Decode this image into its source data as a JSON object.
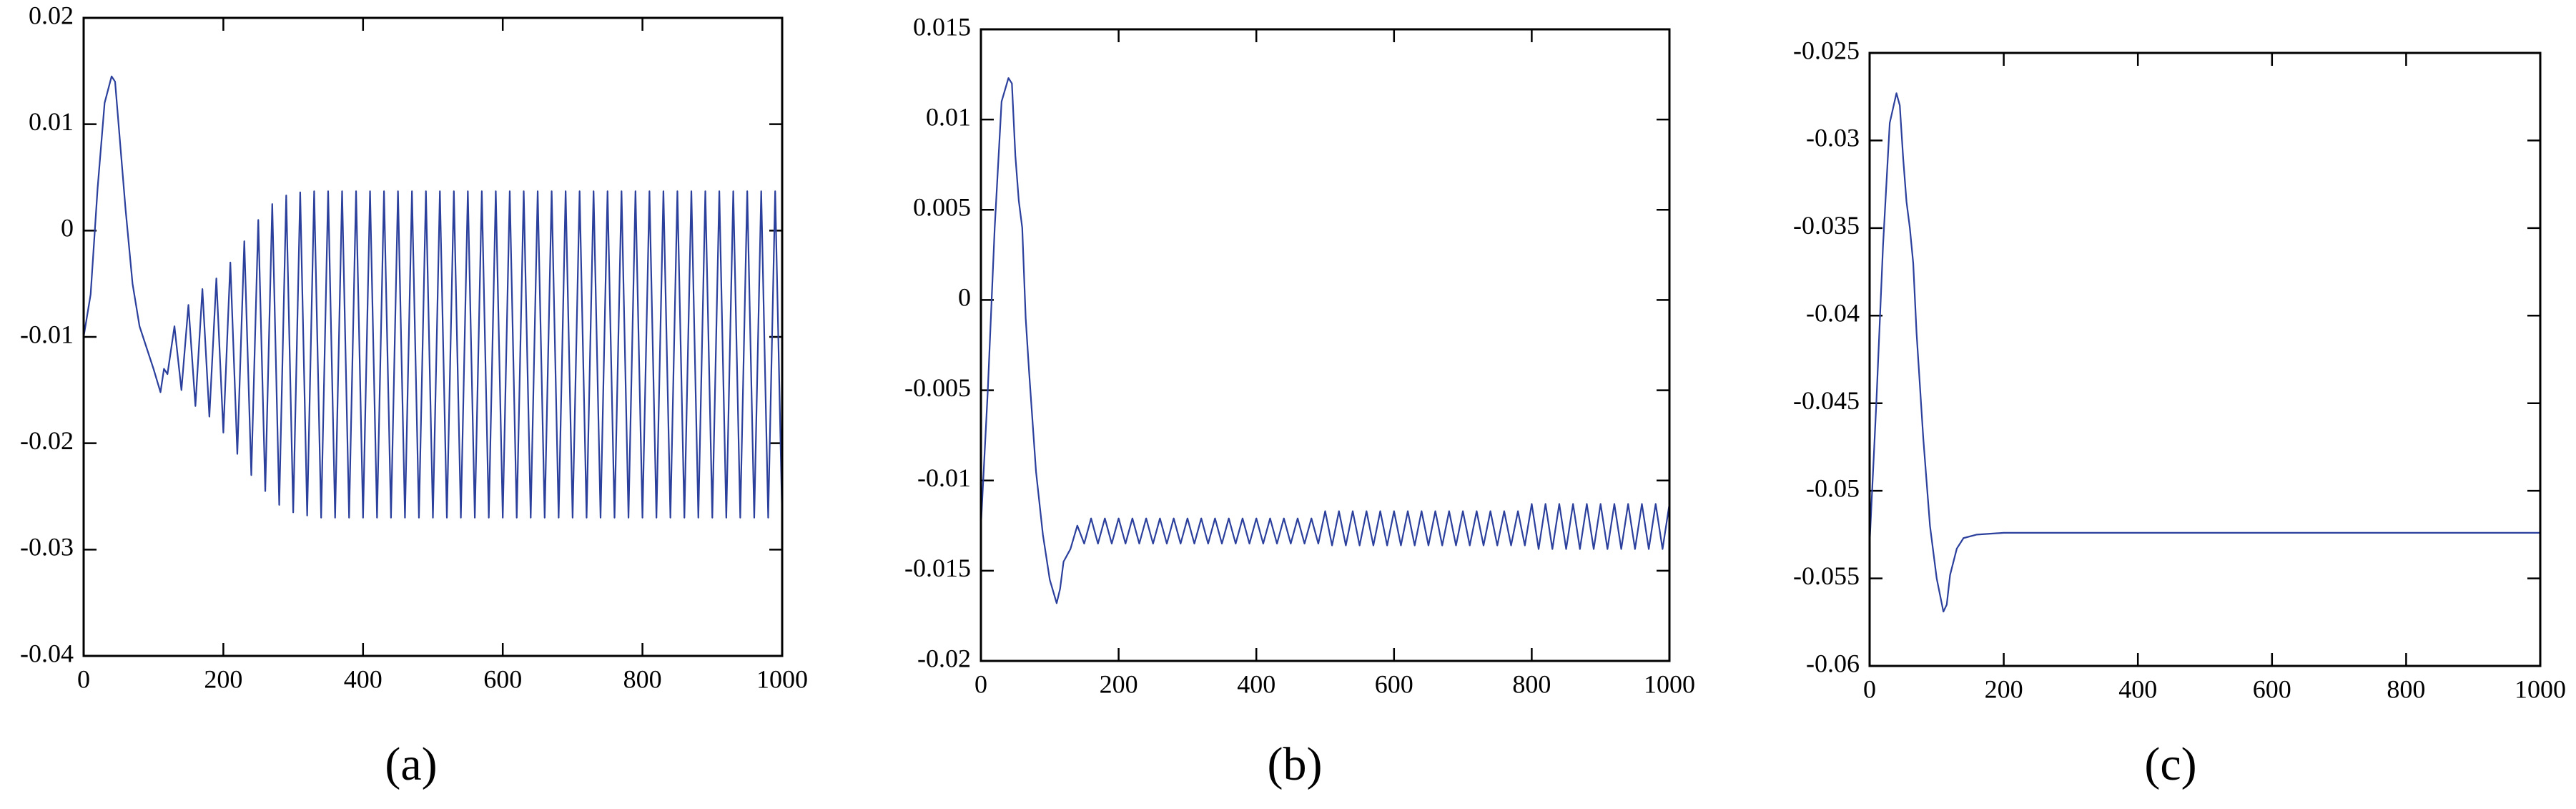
{
  "chart_data": [
    {
      "type": "line",
      "caption": "(a)",
      "color": "#2b3f9c",
      "xlim": [
        0,
        1000
      ],
      "xticks": [
        0,
        200,
        400,
        600,
        800,
        1000
      ],
      "ylim": [
        -0.04,
        0.02
      ],
      "yticks": [
        -0.04,
        -0.03,
        -0.02,
        -0.01,
        0,
        0.01,
        0.02
      ],
      "x": [
        0,
        10,
        20,
        30,
        40,
        45,
        50,
        60,
        70,
        80,
        90,
        100,
        110,
        115,
        120,
        130,
        140,
        150,
        160,
        170,
        180,
        190,
        200,
        210,
        220,
        230,
        240,
        250,
        260,
        270,
        280,
        290,
        300,
        310,
        320,
        330,
        340,
        350,
        360,
        370,
        380,
        390,
        400,
        410,
        420,
        430,
        440,
        450,
        460,
        470,
        480,
        490,
        500,
        510,
        520,
        530,
        540,
        550,
        560,
        570,
        580,
        590,
        600,
        610,
        620,
        630,
        640,
        650,
        660,
        670,
        680,
        690,
        700,
        710,
        720,
        730,
        740,
        750,
        760,
        770,
        780,
        790,
        800,
        810,
        820,
        830,
        840,
        850,
        860,
        870,
        880,
        890,
        900,
        910,
        920,
        930,
        940,
        950,
        960,
        970,
        980,
        990,
        1000
      ],
      "values": [
        -0.01,
        -0.006,
        0.004,
        0.012,
        0.0145,
        0.014,
        0.01,
        0.002,
        -0.005,
        -0.009,
        -0.011,
        -0.013,
        -0.0152,
        -0.013,
        -0.0135,
        -0.009,
        -0.015,
        -0.007,
        -0.0165,
        -0.0055,
        -0.0175,
        -0.0045,
        -0.019,
        -0.003,
        -0.021,
        -0.001,
        -0.023,
        0.001,
        -0.0245,
        0.0025,
        -0.0258,
        0.0033,
        -0.0265,
        0.0036,
        -0.0268,
        0.0037,
        -0.027,
        0.0037,
        -0.027,
        0.0037,
        -0.027,
        0.0037,
        -0.027,
        0.0037,
        -0.027,
        0.0037,
        -0.027,
        0.0037,
        -0.027,
        0.0037,
        -0.027,
        0.0037,
        -0.027,
        0.0037,
        -0.027,
        0.0037,
        -0.027,
        0.0037,
        -0.027,
        0.0037,
        -0.027,
        0.0037,
        -0.027,
        0.0037,
        -0.027,
        0.0037,
        -0.027,
        0.0037,
        -0.027,
        0.0037,
        -0.027,
        0.0037,
        -0.027,
        0.0037,
        -0.027,
        0.0037,
        -0.027,
        0.0037,
        -0.027,
        0.0037,
        -0.027,
        0.0037,
        -0.027,
        0.0037,
        -0.027,
        0.0037,
        -0.027,
        0.0037,
        -0.027,
        0.0037,
        -0.027,
        0.0037,
        -0.027,
        0.0037,
        -0.027,
        0.0037,
        -0.027,
        0.0037,
        -0.027,
        0.0037,
        -0.027,
        0.0037,
        -0.027
      ]
    },
    {
      "type": "line",
      "caption": "(b)",
      "color": "#2b3f9c",
      "xlim": [
        0,
        1000
      ],
      "xticks": [
        0,
        200,
        400,
        600,
        800,
        1000
      ],
      "ylim": [
        -0.02,
        0.015
      ],
      "yticks": [
        -0.02,
        -0.015,
        -0.01,
        -0.005,
        0,
        0.005,
        0.01,
        0.015
      ],
      "x": [
        0,
        10,
        20,
        30,
        40,
        45,
        50,
        55,
        60,
        65,
        70,
        80,
        90,
        100,
        110,
        115,
        120,
        130,
        140,
        150,
        160,
        170,
        180,
        190,
        200,
        210,
        220,
        230,
        240,
        250,
        260,
        270,
        280,
        290,
        300,
        310,
        320,
        330,
        340,
        350,
        360,
        370,
        380,
        390,
        400,
        410,
        420,
        430,
        440,
        450,
        460,
        470,
        480,
        490,
        500,
        510,
        520,
        530,
        540,
        550,
        560,
        570,
        580,
        590,
        600,
        610,
        620,
        630,
        640,
        650,
        660,
        670,
        680,
        690,
        700,
        710,
        720,
        730,
        740,
        750,
        760,
        770,
        780,
        790,
        800,
        810,
        820,
        830,
        840,
        850,
        860,
        870,
        880,
        890,
        900,
        910,
        920,
        930,
        940,
        950,
        960,
        970,
        980,
        990,
        1000
      ],
      "values": [
        -0.0125,
        -0.005,
        0.004,
        0.011,
        0.0123,
        0.012,
        0.008,
        0.0055,
        0.004,
        -0.001,
        -0.004,
        -0.0095,
        -0.013,
        -0.0155,
        -0.0168,
        -0.016,
        -0.0145,
        -0.0138,
        -0.0125,
        -0.0135,
        -0.0121,
        -0.0135,
        -0.0121,
        -0.0135,
        -0.0121,
        -0.0135,
        -0.0121,
        -0.0135,
        -0.0121,
        -0.0135,
        -0.0121,
        -0.0135,
        -0.0121,
        -0.0135,
        -0.0121,
        -0.0135,
        -0.0121,
        -0.0135,
        -0.0121,
        -0.0135,
        -0.0121,
        -0.0135,
        -0.0121,
        -0.0135,
        -0.0121,
        -0.0135,
        -0.0121,
        -0.0135,
        -0.0121,
        -0.0135,
        -0.0121,
        -0.0135,
        -0.0121,
        -0.0135,
        -0.0117,
        -0.0136,
        -0.0117,
        -0.0136,
        -0.0117,
        -0.0136,
        -0.0117,
        -0.0136,
        -0.0117,
        -0.0136,
        -0.0117,
        -0.0136,
        -0.0117,
        -0.0136,
        -0.0117,
        -0.0136,
        -0.0117,
        -0.0136,
        -0.0117,
        -0.0136,
        -0.0117,
        -0.0136,
        -0.0117,
        -0.0136,
        -0.0117,
        -0.0136,
        -0.0117,
        -0.0136,
        -0.0117,
        -0.0136,
        -0.0113,
        -0.0138,
        -0.0113,
        -0.0138,
        -0.0113,
        -0.0138,
        -0.0113,
        -0.0138,
        -0.0113,
        -0.0138,
        -0.0113,
        -0.0138,
        -0.0113,
        -0.0138,
        -0.0113,
        -0.0138,
        -0.0113,
        -0.0138,
        -0.0113,
        -0.0138,
        -0.0113
      ]
    },
    {
      "type": "line",
      "caption": "(c)",
      "color": "#2b3f9c",
      "xlim": [
        0,
        1000
      ],
      "xticks": [
        0,
        200,
        400,
        600,
        800,
        1000
      ],
      "ylim": [
        -0.06,
        -0.025
      ],
      "yticks": [
        -0.06,
        -0.055,
        -0.05,
        -0.045,
        -0.04,
        -0.035,
        -0.03,
        -0.025
      ],
      "x": [
        0,
        10,
        20,
        30,
        40,
        45,
        50,
        55,
        60,
        65,
        70,
        80,
        90,
        100,
        110,
        115,
        120,
        130,
        140,
        160,
        200,
        1000
      ],
      "values": [
        -0.053,
        -0.045,
        -0.036,
        -0.029,
        -0.0273,
        -0.028,
        -0.031,
        -0.0335,
        -0.035,
        -0.037,
        -0.041,
        -0.047,
        -0.052,
        -0.055,
        -0.0569,
        -0.0565,
        -0.0548,
        -0.0533,
        -0.0527,
        -0.0525,
        -0.0524,
        -0.0524
      ]
    }
  ]
}
